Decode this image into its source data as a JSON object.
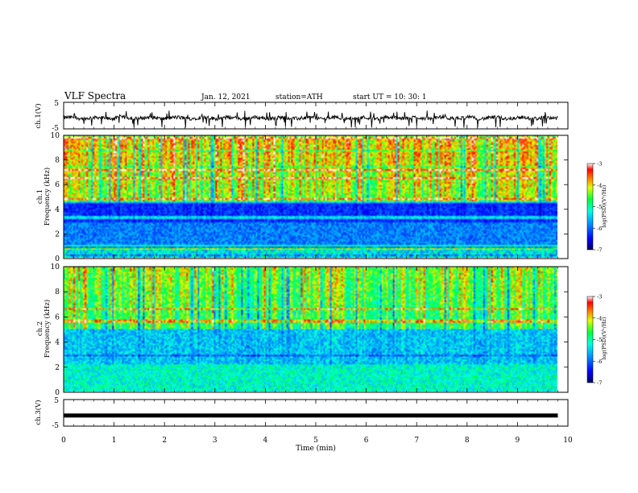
{
  "header": {
    "title": "VLF Spectra",
    "date": "Jan. 12, 2021",
    "station": "station=ATH",
    "start": "start UT =  10: 30: 1"
  },
  "chart_data": [
    {
      "type": "line",
      "panel": "ch1-waveform",
      "ylabel": "ch.1(V)",
      "ylim": [
        -5,
        5
      ],
      "yticks": [
        "5",
        "-5"
      ],
      "x_range": [
        0,
        9.8
      ],
      "baseline": -0.9,
      "color": "#000000"
    },
    {
      "type": "heatmap",
      "panel": "ch1-spectrogram",
      "ylabel": "ch.1\nFrequency (kHz)",
      "ylim": [
        0,
        10
      ],
      "yticks": [
        "0",
        "2",
        "4",
        "6",
        "8",
        "10"
      ],
      "x_range": [
        0,
        9.8
      ],
      "colorbar": {
        "label": "log(PSD)(V²/Hz)",
        "range": [
          -7,
          -3
        ],
        "ticks": [
          "-3",
          "-4",
          "-5",
          "-6",
          "-7"
        ]
      }
    },
    {
      "type": "heatmap",
      "panel": "ch2-spectrogram",
      "ylabel": "ch.2\nFrequency (kHz)",
      "ylim": [
        0,
        10
      ],
      "yticks": [
        "0",
        "2",
        "4",
        "6",
        "8",
        "10"
      ],
      "x_range": [
        0,
        9.8
      ],
      "colorbar": {
        "label": "log(PSD)(V²/Hz)",
        "range": [
          -7,
          -3
        ],
        "ticks": [
          "-3",
          "-4",
          "-5",
          "-6",
          "-7"
        ]
      }
    },
    {
      "type": "line",
      "panel": "ch3-waveform",
      "ylabel": "ch.3(V)",
      "ylim": [
        -5,
        5
      ],
      "yticks": [
        "5",
        "-5"
      ],
      "x_range": [
        0,
        9.8
      ],
      "baseline": -1.0,
      "color": "#000000"
    }
  ],
  "xaxis": {
    "label": "Time (min)",
    "range": [
      0,
      10
    ],
    "ticks": [
      "0",
      "1",
      "2",
      "3",
      "4",
      "5",
      "6",
      "7",
      "8",
      "9",
      "10"
    ]
  }
}
